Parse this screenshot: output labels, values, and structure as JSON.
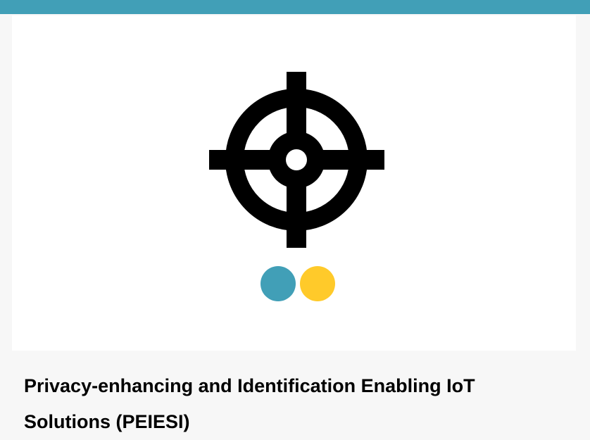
{
  "theme": {
    "accent_color": "#419fb7",
    "logo_color": "#000000",
    "dot_colors": [
      "#419fb7",
      "#ffca2a"
    ]
  },
  "card": {
    "image": {
      "icon": "crosshair-logo-icon"
    },
    "title": "Privacy-enhancing and Identification Enabling IoT Solutions (PEIESI)"
  }
}
